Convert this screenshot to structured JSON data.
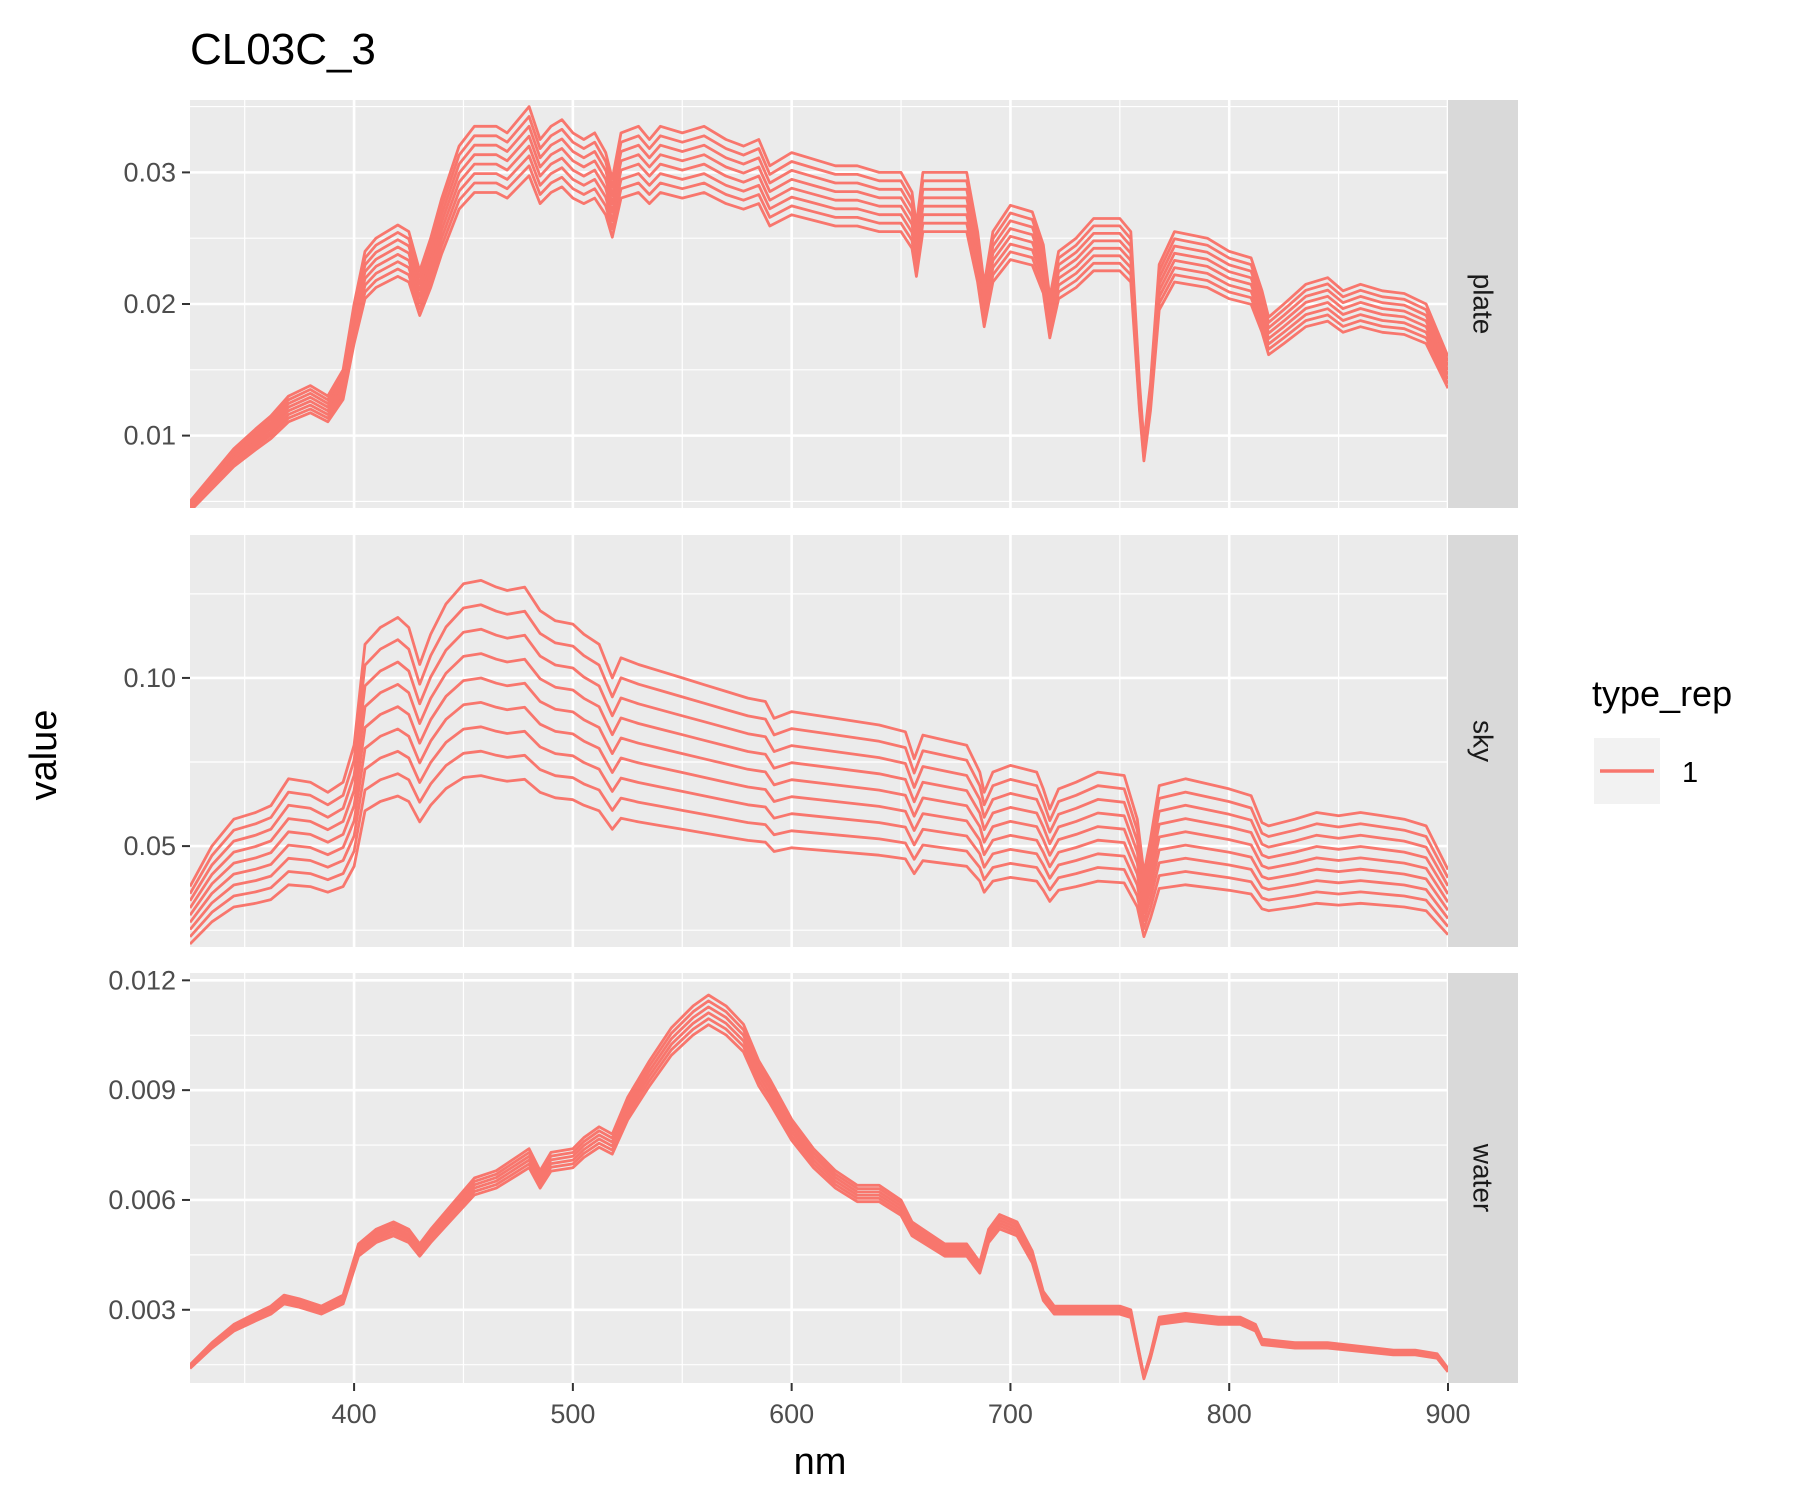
{
  "chart_data": {
    "type": "line",
    "title": "CL03C_3",
    "xlabel": "nm",
    "ylabel": "value",
    "xlim": [
      325,
      900
    ],
    "x_ticks": [
      "400",
      "500",
      "600",
      "700",
      "800",
      "900"
    ],
    "x_tick_values": [
      400,
      500,
      600,
      700,
      800,
      900
    ],
    "line_color": "#F8766D",
    "panel_background": "#EBEBEB",
    "strip_background": "#D9D9D9",
    "grid": true,
    "legend": {
      "title": "type_rep",
      "entries": [
        "1"
      ],
      "position": "right"
    },
    "facets": [
      {
        "name": "plate",
        "ylim": [
          0.0045,
          0.0355
        ],
        "y_ticks": [
          "0.01",
          "0.02",
          "0.03"
        ],
        "y_tick_values": [
          0.01,
          0.02,
          0.03
        ],
        "num_lines": 8,
        "line_scale_min": 0.85,
        "line_scale_max": 1.0,
        "profile": [
          [
            325,
            0.005
          ],
          [
            335,
            0.007
          ],
          [
            345,
            0.009
          ],
          [
            355,
            0.0105
          ],
          [
            362,
            0.0115
          ],
          [
            370,
            0.013
          ],
          [
            380,
            0.0138
          ],
          [
            388,
            0.013
          ],
          [
            395,
            0.015
          ],
          [
            400,
            0.02
          ],
          [
            405,
            0.024
          ],
          [
            410,
            0.025
          ],
          [
            420,
            0.026
          ],
          [
            425,
            0.0255
          ],
          [
            430,
            0.0225
          ],
          [
            435,
            0.025
          ],
          [
            440,
            0.028
          ],
          [
            448,
            0.032
          ],
          [
            455,
            0.0335
          ],
          [
            465,
            0.0335
          ],
          [
            470,
            0.033
          ],
          [
            480,
            0.035
          ],
          [
            485,
            0.0325
          ],
          [
            490,
            0.0335
          ],
          [
            495,
            0.034
          ],
          [
            500,
            0.033
          ],
          [
            505,
            0.0325
          ],
          [
            510,
            0.033
          ],
          [
            515,
            0.0315
          ],
          [
            518,
            0.0295
          ],
          [
            522,
            0.033
          ],
          [
            530,
            0.0335
          ],
          [
            535,
            0.0325
          ],
          [
            540,
            0.0335
          ],
          [
            550,
            0.033
          ],
          [
            560,
            0.0335
          ],
          [
            570,
            0.0325
          ],
          [
            578,
            0.032
          ],
          [
            585,
            0.0325
          ],
          [
            590,
            0.0305
          ],
          [
            600,
            0.0315
          ],
          [
            610,
            0.031
          ],
          [
            620,
            0.0305
          ],
          [
            630,
            0.0305
          ],
          [
            640,
            0.03
          ],
          [
            650,
            0.03
          ],
          [
            655,
            0.0285
          ],
          [
            657,
            0.026
          ],
          [
            660,
            0.03
          ],
          [
            670,
            0.03
          ],
          [
            680,
            0.03
          ],
          [
            685,
            0.0255
          ],
          [
            688,
            0.0215
          ],
          [
            692,
            0.0255
          ],
          [
            700,
            0.0275
          ],
          [
            710,
            0.027
          ],
          [
            715,
            0.0245
          ],
          [
            718,
            0.0205
          ],
          [
            722,
            0.024
          ],
          [
            730,
            0.025
          ],
          [
            738,
            0.0265
          ],
          [
            750,
            0.0265
          ],
          [
            755,
            0.0255
          ],
          [
            759,
            0.014
          ],
          [
            761,
            0.0095
          ],
          [
            764,
            0.014
          ],
          [
            768,
            0.023
          ],
          [
            775,
            0.0255
          ],
          [
            790,
            0.025
          ],
          [
            800,
            0.024
          ],
          [
            810,
            0.0235
          ],
          [
            815,
            0.021
          ],
          [
            818,
            0.019
          ],
          [
            825,
            0.02
          ],
          [
            835,
            0.0215
          ],
          [
            845,
            0.022
          ],
          [
            852,
            0.021
          ],
          [
            860,
            0.0215
          ],
          [
            870,
            0.021
          ],
          [
            880,
            0.0208
          ],
          [
            890,
            0.02
          ],
          [
            900,
            0.016
          ]
        ]
      },
      {
        "name": "sky",
        "ylim": [
          0.02,
          0.1425
        ],
        "y_ticks": [
          "0.05",
          "0.10"
        ],
        "y_tick_values": [
          0.05,
          0.1
        ],
        "num_lines": 9,
        "line_scale_min": 0.55,
        "line_scale_max": 1.0,
        "profile": [
          [
            325,
            0.038
          ],
          [
            335,
            0.05
          ],
          [
            345,
            0.058
          ],
          [
            355,
            0.06
          ],
          [
            362,
            0.062
          ],
          [
            370,
            0.07
          ],
          [
            380,
            0.069
          ],
          [
            388,
            0.066
          ],
          [
            395,
            0.069
          ],
          [
            400,
            0.08
          ],
          [
            405,
            0.11
          ],
          [
            412,
            0.115
          ],
          [
            420,
            0.118
          ],
          [
            425,
            0.115
          ],
          [
            430,
            0.104
          ],
          [
            435,
            0.113
          ],
          [
            442,
            0.122
          ],
          [
            450,
            0.128
          ],
          [
            458,
            0.129
          ],
          [
            465,
            0.127
          ],
          [
            470,
            0.126
          ],
          [
            478,
            0.127
          ],
          [
            485,
            0.12
          ],
          [
            492,
            0.117
          ],
          [
            500,
            0.116
          ],
          [
            505,
            0.113
          ],
          [
            512,
            0.11
          ],
          [
            518,
            0.1
          ],
          [
            522,
            0.106
          ],
          [
            530,
            0.104
          ],
          [
            540,
            0.102
          ],
          [
            550,
            0.1
          ],
          [
            560,
            0.098
          ],
          [
            570,
            0.096
          ],
          [
            580,
            0.094
          ],
          [
            588,
            0.093
          ],
          [
            592,
            0.088
          ],
          [
            600,
            0.09
          ],
          [
            620,
            0.088
          ],
          [
            640,
            0.086
          ],
          [
            652,
            0.084
          ],
          [
            656,
            0.076
          ],
          [
            660,
            0.083
          ],
          [
            680,
            0.08
          ],
          [
            686,
            0.072
          ],
          [
            688,
            0.066
          ],
          [
            692,
            0.072
          ],
          [
            700,
            0.074
          ],
          [
            712,
            0.072
          ],
          [
            715,
            0.067
          ],
          [
            718,
            0.061
          ],
          [
            722,
            0.067
          ],
          [
            730,
            0.069
          ],
          [
            740,
            0.072
          ],
          [
            752,
            0.071
          ],
          [
            758,
            0.058
          ],
          [
            761,
            0.042
          ],
          [
            764,
            0.052
          ],
          [
            768,
            0.068
          ],
          [
            780,
            0.07
          ],
          [
            800,
            0.067
          ],
          [
            810,
            0.065
          ],
          [
            815,
            0.057
          ],
          [
            818,
            0.056
          ],
          [
            830,
            0.058
          ],
          [
            840,
            0.06
          ],
          [
            850,
            0.059
          ],
          [
            860,
            0.06
          ],
          [
            870,
            0.059
          ],
          [
            880,
            0.058
          ],
          [
            890,
            0.056
          ],
          [
            900,
            0.043
          ]
        ]
      },
      {
        "name": "water",
        "ylim": [
          0.001,
          0.0122
        ],
        "y_ticks": [
          "0.003",
          "0.006",
          "0.009",
          "0.012"
        ],
        "y_tick_values": [
          0.003,
          0.006,
          0.009,
          0.012
        ],
        "num_lines": 6,
        "line_scale_min": 0.93,
        "line_scale_max": 1.0,
        "profile": [
          [
            325,
            0.0015
          ],
          [
            335,
            0.0021
          ],
          [
            345,
            0.0026
          ],
          [
            355,
            0.0029
          ],
          [
            362,
            0.0031
          ],
          [
            368,
            0.0034
          ],
          [
            375,
            0.0033
          ],
          [
            385,
            0.0031
          ],
          [
            395,
            0.0034
          ],
          [
            402,
            0.0048
          ],
          [
            410,
            0.0052
          ],
          [
            418,
            0.0054
          ],
          [
            425,
            0.0052
          ],
          [
            430,
            0.0048
          ],
          [
            435,
            0.0052
          ],
          [
            445,
            0.0059
          ],
          [
            455,
            0.0066
          ],
          [
            465,
            0.0068
          ],
          [
            475,
            0.0072
          ],
          [
            480,
            0.0074
          ],
          [
            485,
            0.0068
          ],
          [
            490,
            0.0073
          ],
          [
            500,
            0.0074
          ],
          [
            505,
            0.0077
          ],
          [
            512,
            0.008
          ],
          [
            518,
            0.0078
          ],
          [
            525,
            0.0088
          ],
          [
            535,
            0.0098
          ],
          [
            545,
            0.0107
          ],
          [
            555,
            0.0113
          ],
          [
            562,
            0.0116
          ],
          [
            570,
            0.0113
          ],
          [
            578,
            0.0108
          ],
          [
            585,
            0.0098
          ],
          [
            590,
            0.0093
          ],
          [
            600,
            0.0082
          ],
          [
            610,
            0.0074
          ],
          [
            620,
            0.0068
          ],
          [
            630,
            0.0064
          ],
          [
            640,
            0.0064
          ],
          [
            650,
            0.006
          ],
          [
            655,
            0.0054
          ],
          [
            660,
            0.0052
          ],
          [
            670,
            0.0048
          ],
          [
            680,
            0.0048
          ],
          [
            686,
            0.0043
          ],
          [
            690,
            0.0052
          ],
          [
            695,
            0.0056
          ],
          [
            703,
            0.0054
          ],
          [
            710,
            0.0046
          ],
          [
            715,
            0.0035
          ],
          [
            720,
            0.0031
          ],
          [
            730,
            0.0031
          ],
          [
            740,
            0.0031
          ],
          [
            750,
            0.0031
          ],
          [
            755,
            0.003
          ],
          [
            759,
            0.0018
          ],
          [
            761,
            0.0012
          ],
          [
            764,
            0.0018
          ],
          [
            768,
            0.0028
          ],
          [
            780,
            0.0029
          ],
          [
            795,
            0.0028
          ],
          [
            805,
            0.0028
          ],
          [
            812,
            0.0026
          ],
          [
            815,
            0.0022
          ],
          [
            830,
            0.0021
          ],
          [
            845,
            0.0021
          ],
          [
            860,
            0.002
          ],
          [
            875,
            0.0019
          ],
          [
            885,
            0.0019
          ],
          [
            895,
            0.0018
          ],
          [
            900,
            0.0014
          ]
        ]
      }
    ]
  }
}
